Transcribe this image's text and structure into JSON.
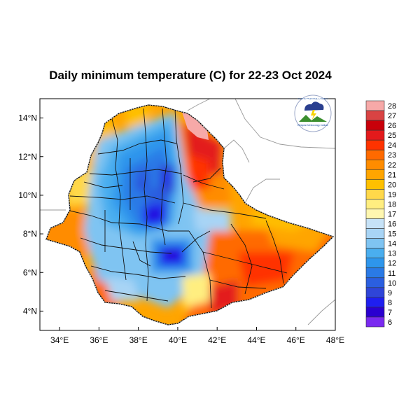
{
  "title": "Daily minimum temperature (C) for 22-23 Oct 2024",
  "colors": {
    "background": "#ffffff",
    "frame": "#000000",
    "outside_land": "#ffffff",
    "neighbor_border": "#9a9a9a",
    "admin_border": "#111111"
  },
  "map": {
    "lon_range": [
      33,
      48
    ],
    "lat_range": [
      3,
      15
    ],
    "x_ticks": [
      {
        "value": 34,
        "label": "34°E"
      },
      {
        "value": 36,
        "label": "36°E"
      },
      {
        "value": 38,
        "label": "38°E"
      },
      {
        "value": 40,
        "label": "40°E"
      },
      {
        "value": 42,
        "label": "42°E"
      },
      {
        "value": 44,
        "label": "44°E"
      },
      {
        "value": 46,
        "label": "46°E"
      },
      {
        "value": 48,
        "label": "48°E"
      }
    ],
    "y_ticks": [
      {
        "value": 4,
        "label": "4°N"
      },
      {
        "value": 6,
        "label": "6°N"
      },
      {
        "value": 8,
        "label": "8°N"
      },
      {
        "value": 10,
        "label": "10°N"
      },
      {
        "value": 12,
        "label": "12°N"
      },
      {
        "value": 14,
        "label": "14°N"
      }
    ]
  },
  "colorbar": {
    "levels": [
      {
        "label": "28",
        "color": "#f7a9a8"
      },
      {
        "label": "27",
        "color": "#d94343"
      },
      {
        "label": "26",
        "color": "#c8000a"
      },
      {
        "label": "25",
        "color": "#e31a1c"
      },
      {
        "label": "24",
        "color": "#ff3300"
      },
      {
        "label": "23",
        "color": "#ff6a00"
      },
      {
        "label": "22",
        "color": "#ff8c00"
      },
      {
        "label": "21",
        "color": "#ffa500"
      },
      {
        "label": "20",
        "color": "#ffc000"
      },
      {
        "label": "19",
        "color": "#ffd84a"
      },
      {
        "label": "18",
        "color": "#ffee80"
      },
      {
        "label": "17",
        "color": "#fff7b0"
      },
      {
        "label": "16",
        "color": "#c6e2f7"
      },
      {
        "label": "15",
        "color": "#a8d4f5"
      },
      {
        "label": "14",
        "color": "#7fc4f2"
      },
      {
        "label": "13",
        "color": "#4aaeef"
      },
      {
        "label": "12",
        "color": "#2e96ec"
      },
      {
        "label": "11",
        "color": "#2a7ae6"
      },
      {
        "label": "10",
        "color": "#2b5fe0"
      },
      {
        "label": "9",
        "color": "#2f45d8"
      },
      {
        "label": "8",
        "color": "#1f1ff0"
      },
      {
        "label": "7",
        "color": "#2a00d0"
      },
      {
        "label": "6",
        "color": "#7a2af0"
      }
    ]
  },
  "logo": {
    "name": "agency-logo-icon",
    "top_text": "የኢትዮጵያ ሚቲዎሮሎጂ ኢንስቲትዩት",
    "bottom_text": "Ethiopian Meteorology Institute"
  },
  "temperature_zones": [
    {
      "name": "far-north-red",
      "color": "#e31a1c"
    },
    {
      "name": "danakil-hot",
      "color": "#f7a9a8"
    },
    {
      "name": "afar-orange",
      "color": "#ff8c00"
    },
    {
      "name": "western-lowland",
      "color": "#ffa500"
    },
    {
      "name": "south-east-ogaden",
      "color": "#ff6a00"
    },
    {
      "name": "highland-blue",
      "color": "#2e96ec"
    },
    {
      "name": "coldest-core",
      "color": "#2a00d0"
    }
  ]
}
